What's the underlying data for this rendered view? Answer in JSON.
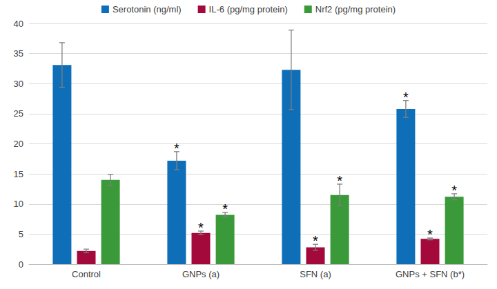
{
  "chart_data": {
    "type": "bar",
    "categories": [
      "Control",
      "GNPs (a)",
      "SFN (a)",
      "GNPs + SFN (b*)"
    ],
    "series": [
      {
        "name": "Serotonin (ng/ml)",
        "color": "#0e6eb8",
        "values": [
          33.1,
          17.2,
          32.3,
          25.8
        ],
        "errors": [
          3.7,
          1.5,
          6.6,
          1.4
        ],
        "annotations": [
          null,
          "*",
          null,
          "*"
        ]
      },
      {
        "name": "IL-6 (pg/mg protein)",
        "color": "#a3093b",
        "values": [
          2.2,
          5.2,
          2.8,
          4.2
        ],
        "errors": [
          0.3,
          0.3,
          0.5,
          0.15
        ],
        "annotations": [
          null,
          "*",
          "*",
          "*"
        ]
      },
      {
        "name": "Nrf2 (pg/mg protein)",
        "color": "#3a9a3a",
        "values": [
          14.0,
          8.2,
          11.5,
          11.2
        ],
        "errors": [
          0.9,
          0.4,
          1.8,
          0.5
        ],
        "annotations": [
          null,
          "*",
          "*",
          "*"
        ]
      }
    ],
    "ylim": [
      0,
      40
    ],
    "yticks": [
      0,
      5,
      10,
      15,
      20,
      25,
      30,
      35,
      40
    ],
    "grid": true,
    "legend": "top"
  }
}
